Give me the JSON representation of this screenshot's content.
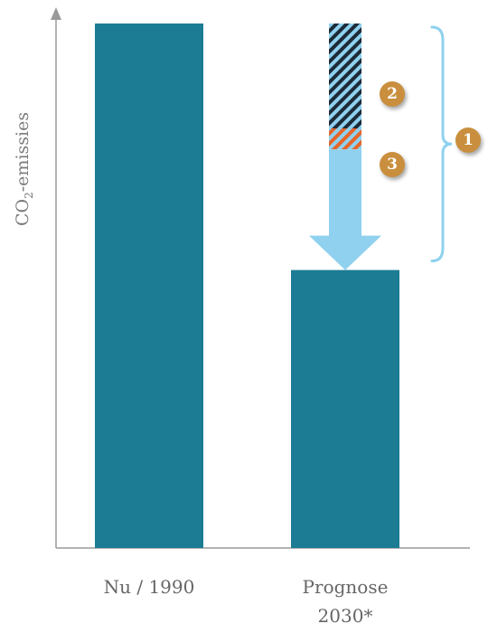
{
  "chart_data": {
    "type": "bar",
    "categories": [
      "Nu / 1990",
      "Prognose 2030*"
    ],
    "category_lines": [
      [
        "Nu / 1990"
      ],
      [
        "Prognose",
        "2030*"
      ]
    ],
    "values": [
      100,
      53
    ],
    "ylabel": {
      "main": "CO",
      "sub": "2",
      "rest": "-emissies"
    },
    "ylim": [
      0,
      106
    ],
    "grid": false,
    "legend": "none",
    "reduction_stack": [
      {
        "label": "2",
        "from": 80,
        "to": 100,
        "style": "hatched-blue-black"
      },
      {
        "label": "3",
        "from": 76,
        "to": 80,
        "style": "hatched-orange"
      },
      {
        "label": "",
        "from": 53,
        "to": 76,
        "style": "arrow"
      }
    ],
    "brace_label": "1",
    "brace_range": [
      53,
      100
    ]
  },
  "colors": {
    "bar": "#1b7c93",
    "arrow": "#8fd1ef",
    "hatch_dark": "#1d2a38",
    "hatch_orange": "#e4652a",
    "badge": "#c98f3e",
    "axis": "#9a9a9a",
    "brace": "#8fd1ef"
  }
}
